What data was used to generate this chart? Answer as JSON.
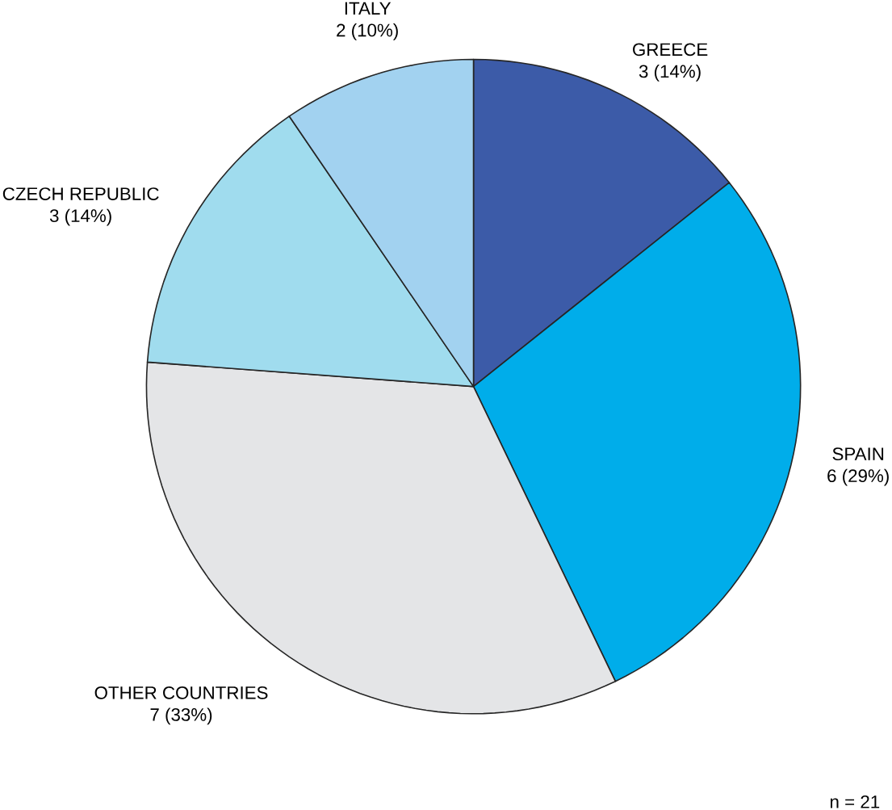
{
  "chart_data": {
    "type": "pie",
    "categories": [
      "GREECE",
      "SPAIN",
      "OTHER COUNTRIES",
      "CZECH REPUBLIC",
      "ITALY"
    ],
    "values": [
      3,
      6,
      7,
      3,
      2
    ],
    "value_labels": [
      "3 (14%)",
      "6 (29%)",
      "7 (33%)",
      "3 (14%)",
      "2 (10%)"
    ],
    "colors": [
      "#3c5ba8",
      "#00adea",
      "#e4e5e7",
      "#a0dcee",
      "#a2d2f0"
    ],
    "annotations": [
      "n = 21"
    ]
  }
}
